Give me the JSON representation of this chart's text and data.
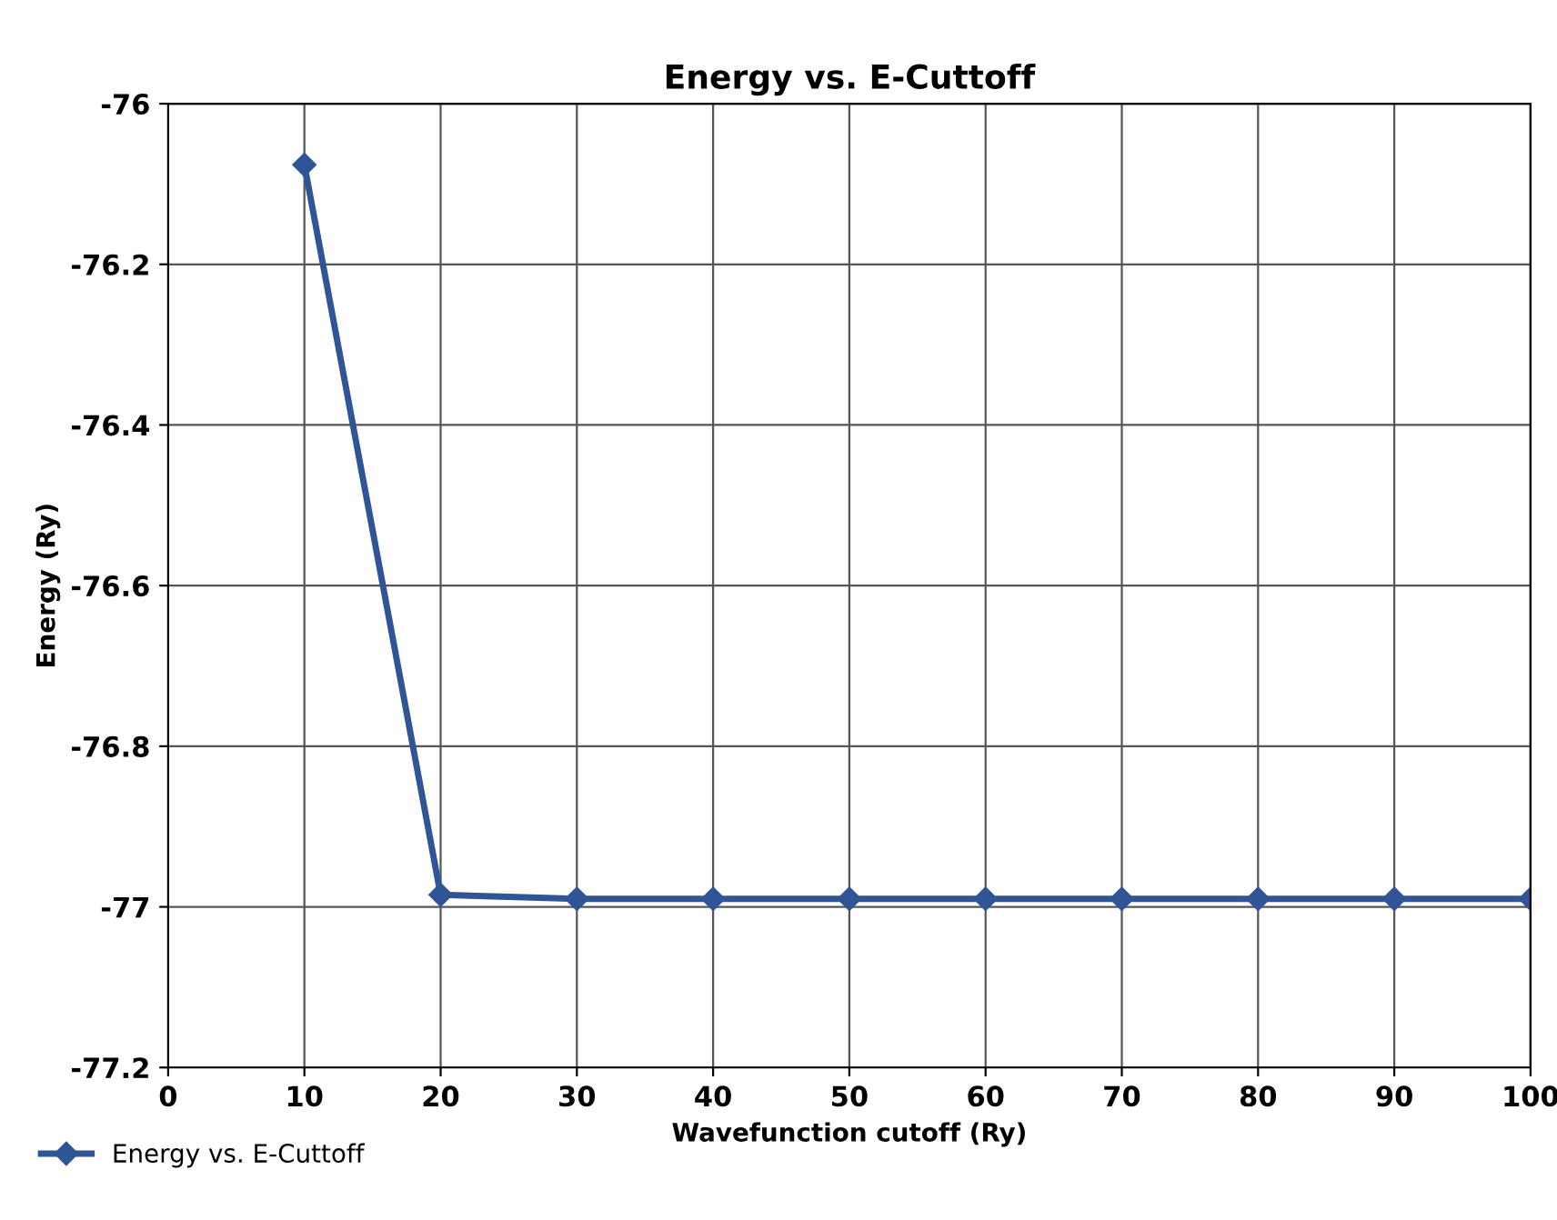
{
  "chart_data": {
    "type": "line",
    "title": "Energy vs. E-Cuttoff",
    "xlabel": "Wavefunction cutoff (Ry)",
    "ylabel": "Energy (Ry)",
    "x": [
      10,
      20,
      30,
      40,
      50,
      60,
      70,
      80,
      90,
      100
    ],
    "series": [
      {
        "name": "Energy vs. E-Cuttoff",
        "color": "#2f5597",
        "values": [
          -76.076,
          -76.985,
          -76.99,
          -76.99,
          -76.99,
          -76.99,
          -76.99,
          -76.99,
          -76.99,
          -76.99
        ]
      }
    ],
    "xlim": [
      0,
      100
    ],
    "xticks": [
      0,
      10,
      20,
      30,
      40,
      50,
      60,
      70,
      80,
      90,
      100
    ],
    "ylim": [
      -77.2,
      -76
    ],
    "yticks": [
      -77.2,
      -77,
      -76.8,
      -76.6,
      -76.4,
      -76.2,
      -76
    ],
    "grid": true,
    "legend": "bottom left",
    "marker": "diamond",
    "line_style": "solid"
  }
}
